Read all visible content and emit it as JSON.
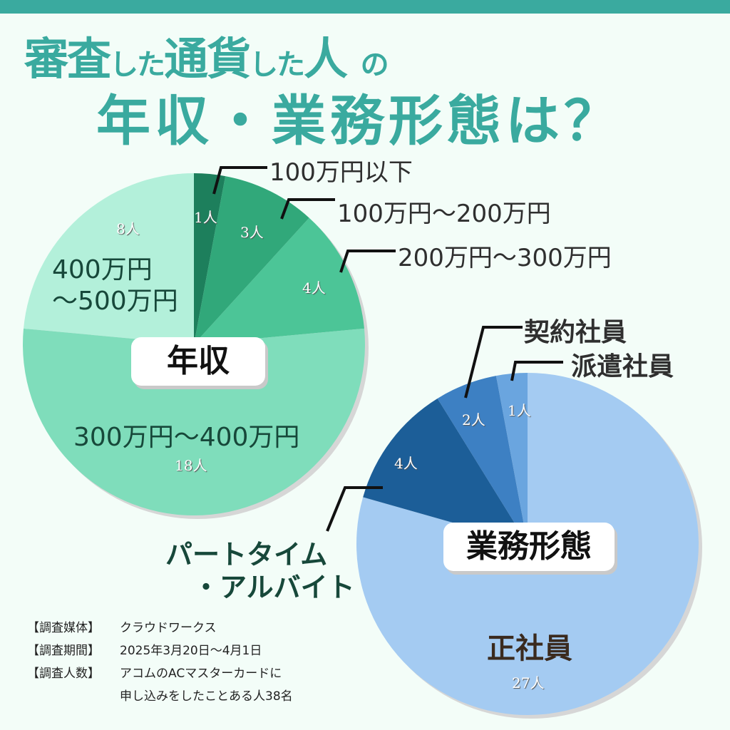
{
  "header": {
    "title_line1_parts": [
      "審査",
      "した",
      "通貨",
      "した",
      "人",
      "の"
    ],
    "title_line1": "審査した通貨した人の",
    "title_line2": "年収・業務形態は？"
  },
  "colors": {
    "background": "#f3fdf8",
    "accent": "#3aaa9f",
    "income_slices": [
      "#1d7f5c",
      "#31a87a",
      "#4cc597",
      "#7fddbb",
      "#b3f0da"
    ],
    "employment_slices": [
      "#a4cbf2",
      "#1c5e98",
      "#3d80c3",
      "#6aa5df"
    ]
  },
  "chart_data": [
    {
      "type": "pie",
      "title": "年収",
      "categories": [
        "100万円以下",
        "100万円〜200万円",
        "200万円〜300万円",
        "300万円〜400万円",
        "400万円〜500万円"
      ],
      "values": [
        1,
        3,
        4,
        18,
        8
      ],
      "value_labels": [
        "1人",
        "3人",
        "4人",
        "18人",
        "8人"
      ],
      "unit": "人",
      "start_angle": "12 o'clock, clockwise"
    },
    {
      "type": "pie",
      "title": "業務形態",
      "categories": [
        "正社員",
        "パートタイム・アルバイト",
        "契約社員",
        "派遣社員"
      ],
      "values": [
        27,
        4,
        2,
        1
      ],
      "value_labels": [
        "27人",
        "4人",
        "2人",
        "1人"
      ],
      "unit": "人",
      "start_angle": "12 o'clock, clockwise"
    }
  ],
  "income": {
    "tag": "年収",
    "labels": {
      "lt100": "100万円以下",
      "100_200": "100万円〜200万円",
      "200_300": "200万円〜300万円",
      "300_400": "300万円〜400万円",
      "400_500_line1": "400万円",
      "400_500_line2": "〜500万円"
    },
    "counts": {
      "lt100": "1人",
      "100_200": "3人",
      "200_300": "4人",
      "300_400": "18人",
      "400_500": "8人"
    }
  },
  "employment": {
    "tag": "業務形態",
    "labels": {
      "seishain": "正社員",
      "part_line1": "パートタイム",
      "part_line2": "・アルバイト",
      "keiyaku": "契約社員",
      "haken": "派遣社員"
    },
    "counts": {
      "seishain": "27人",
      "part": "4人",
      "keiyaku": "2人",
      "haken": "1人"
    }
  },
  "survey": {
    "rows": [
      {
        "key": "【調査媒体】",
        "value": "クラウドワークス"
      },
      {
        "key": "【調査期間】",
        "value": "2025年3月20日〜4月1日"
      },
      {
        "key": "【調査人数】",
        "value": "アコムのACマスターカードに"
      },
      {
        "key": "",
        "value": "申し込みをしたことある人38名"
      }
    ]
  }
}
